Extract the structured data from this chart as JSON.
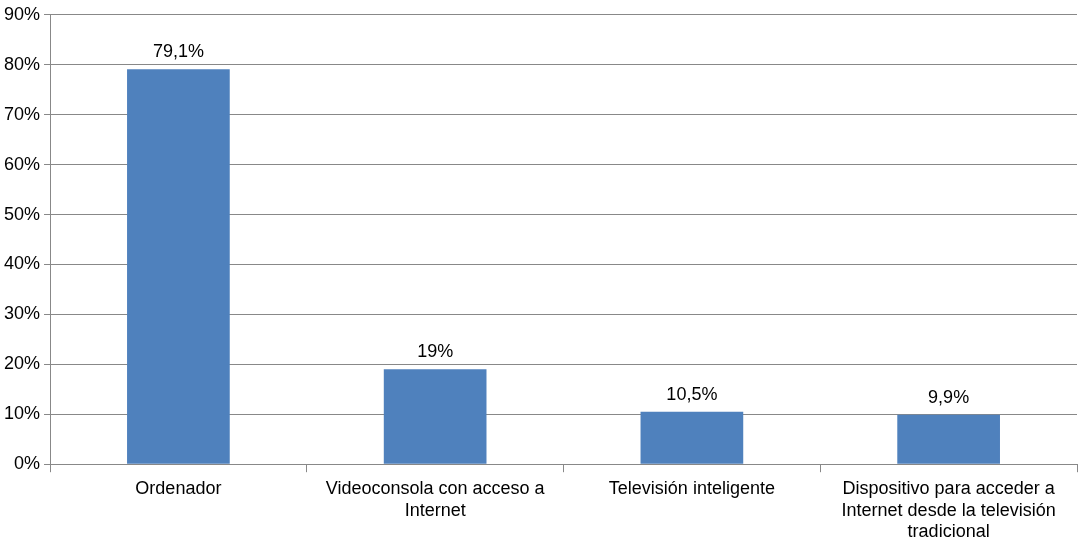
{
  "chart_data": {
    "type": "bar",
    "categories": [
      "Ordenador",
      "Videoconsola con acceso a Internet",
      "Televisión inteligente",
      "Dispositivo para acceder a Internet desde la televisión tradicional"
    ],
    "values": [
      79.1,
      19,
      10.5,
      9.9
    ],
    "value_labels": [
      "79,1%",
      "19%",
      "10,5%",
      "9,9%"
    ],
    "color": "#4f81bd",
    "ylim": [
      0,
      90
    ],
    "yticks": [
      {
        "value": 0,
        "label": "0%"
      },
      {
        "value": 10,
        "label": "10%"
      },
      {
        "value": 20,
        "label": "20%"
      },
      {
        "value": 30,
        "label": "30%"
      },
      {
        "value": 40,
        "label": "40%"
      },
      {
        "value": 50,
        "label": "50%"
      },
      {
        "value": 60,
        "label": "60%"
      },
      {
        "value": 70,
        "label": "70%"
      },
      {
        "value": 80,
        "label": "80%"
      },
      {
        "value": 90,
        "label": "90%"
      }
    ],
    "grid": "y",
    "legend": false
  }
}
